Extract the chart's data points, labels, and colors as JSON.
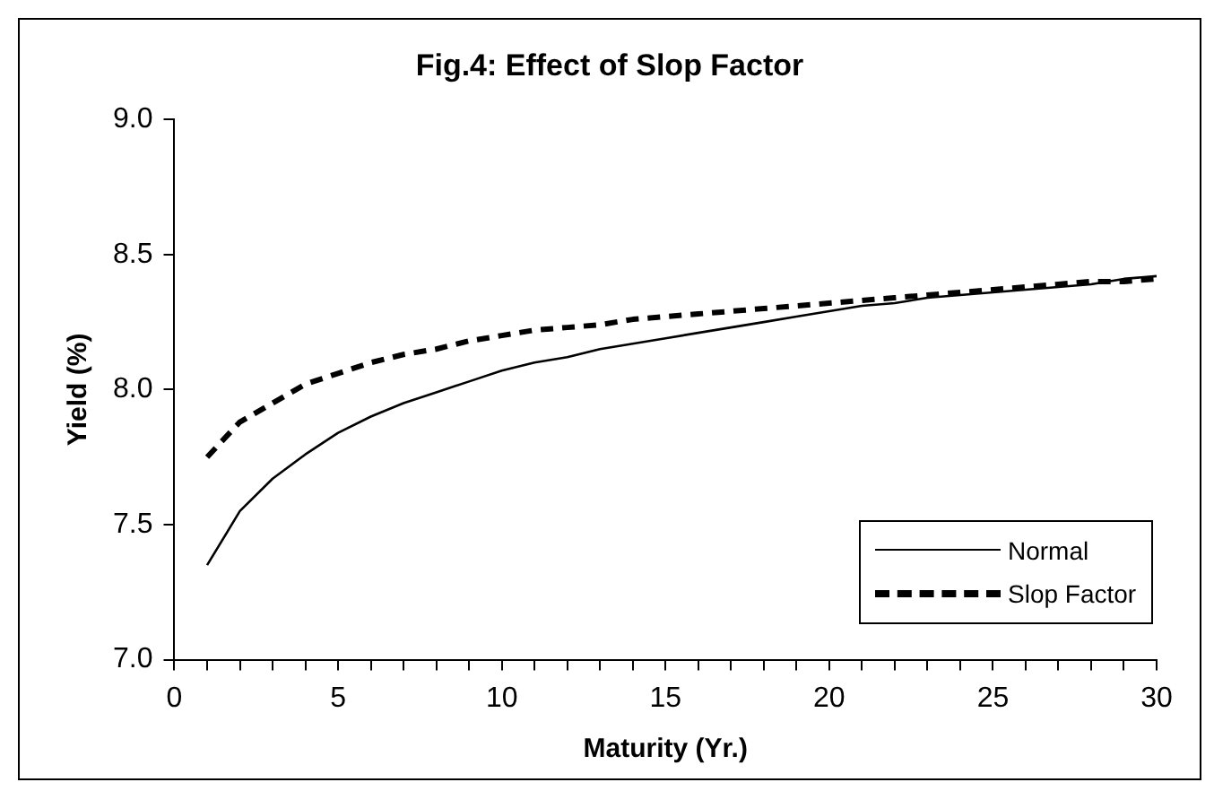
{
  "chart_data": {
    "type": "line",
    "title": "Fig.4: Effect of Slop Factor",
    "xlabel": "Maturity (Yr.)",
    "ylabel": "Yield (%)",
    "x": [
      1,
      2,
      3,
      4,
      5,
      6,
      7,
      8,
      9,
      10,
      11,
      12,
      13,
      14,
      15,
      16,
      17,
      18,
      19,
      20,
      21,
      22,
      23,
      24,
      25,
      26,
      27,
      28,
      29,
      30
    ],
    "series": [
      {
        "name": "Normal",
        "color": "#000000",
        "line_style": "solid",
        "values": [
          7.35,
          7.55,
          7.67,
          7.76,
          7.84,
          7.9,
          7.95,
          7.99,
          8.03,
          8.07,
          8.1,
          8.12,
          8.15,
          8.17,
          8.19,
          8.21,
          8.23,
          8.25,
          8.27,
          8.29,
          8.31,
          8.32,
          8.34,
          8.35,
          8.36,
          8.37,
          8.38,
          8.39,
          8.41,
          8.42
        ]
      },
      {
        "name": "Slop Factor",
        "color": "#000000",
        "line_style": "dashed",
        "values": [
          7.75,
          7.88,
          7.95,
          8.02,
          8.06,
          8.1,
          8.13,
          8.15,
          8.18,
          8.2,
          8.22,
          8.23,
          8.24,
          8.26,
          8.27,
          8.28,
          8.29,
          8.3,
          8.31,
          8.32,
          8.33,
          8.34,
          8.35,
          8.36,
          8.37,
          8.38,
          8.39,
          8.4,
          8.4,
          8.41
        ]
      }
    ],
    "xlim": [
      0,
      30
    ],
    "xticks": [
      0,
      {
        "value": 1,
        "label": null
      },
      {
        "value": 2,
        "label": null
      },
      {
        "value": 3,
        "label": null
      },
      {
        "value": 4,
        "label": null
      },
      5,
      {
        "value": 6,
        "label": null
      },
      {
        "value": 7,
        "label": null
      },
      {
        "value": 8,
        "label": null
      },
      {
        "value": 9,
        "label": null
      },
      10,
      {
        "value": 11,
        "label": null
      },
      {
        "value": 12,
        "label": null
      },
      {
        "value": 13,
        "label": null
      },
      {
        "value": 14,
        "label": null
      },
      15,
      {
        "value": 16,
        "label": null
      },
      {
        "value": 17,
        "label": null
      },
      {
        "value": 18,
        "label": null
      },
      {
        "value": 19,
        "label": null
      },
      20,
      {
        "value": 21,
        "label": null
      },
      {
        "value": 22,
        "label": null
      },
      {
        "value": 23,
        "label": null
      },
      {
        "value": 24,
        "label": null
      },
      25,
      {
        "value": 26,
        "label": null
      },
      {
        "value": 27,
        "label": null
      },
      {
        "value": 28,
        "label": null
      },
      {
        "value": 29,
        "label": null
      },
      30
    ],
    "ylim": [
      7.0,
      9.0
    ],
    "yticks": [
      {
        "value": 7.0,
        "label": "7.0"
      },
      {
        "value": 7.5,
        "label": "7.5"
      },
      {
        "value": 8.0,
        "label": "8.0"
      },
      {
        "value": 8.5,
        "label": "8.5"
      },
      {
        "value": 9.0,
        "label": "9.0"
      }
    ],
    "grid": false,
    "legend": "bottom right",
    "marker": "none"
  }
}
